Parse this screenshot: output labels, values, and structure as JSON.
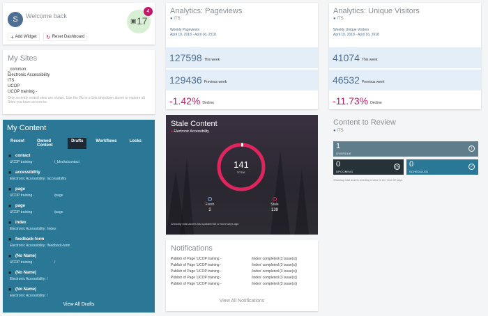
{
  "welcome": {
    "avatar_initial": "S",
    "text": "Welcome back",
    "notifications_count": "17",
    "notifications_badge": "4",
    "add_widget": "Add Widget",
    "reset_dashboard": "Reset Dashboard"
  },
  "my_sites": {
    "title": "My Sites",
    "sites": [
      "_common",
      "Electronic Accessibility",
      "ITS",
      "UCOP",
      "UCOP training -"
    ],
    "note": "Only recently visited sites are shown. Use the Go to a Site dropdown above to explore all Sites you have access to."
  },
  "my_content": {
    "title": "My Content",
    "tabs": [
      "Recent",
      "Owned Content",
      "Drafts",
      "Workflows",
      "Locks"
    ],
    "active_tab": "Drafts",
    "items": [
      {
        "name": "contact",
        "site": "UCOP training -",
        "path": "/_blocks/contact"
      },
      {
        "name": "accessibility",
        "site": "Electronic Accessibility: /accessibility",
        "path": ""
      },
      {
        "name": "page",
        "site": "UCOP training -",
        "path": "/page"
      },
      {
        "name": "page",
        "site": "UCOP training -",
        "path": "/page"
      },
      {
        "name": "index",
        "site": "Electronic Accessibility: /index",
        "path": ""
      },
      {
        "name": "feedback-form",
        "site": "Electronic Accessibility: /feedback-form",
        "path": ""
      },
      {
        "name": "(No Name)",
        "site": "UCOP training -",
        "path": "/"
      },
      {
        "name": "(No Name)",
        "site": "Electronic Accessibility: /",
        "path": ""
      },
      {
        "name": "(No Name)",
        "site": "Electronic Accessibility: /",
        "path": ""
      }
    ],
    "view_all": "View All Drafts"
  },
  "analytics_pageviews": {
    "title": "Analytics: Pageviews",
    "site": "ITS",
    "range_label": "Weekly Pageviews",
    "range": "April 10, 2018 - April 16, 2018",
    "this_week": "127598",
    "this_week_label": "This week",
    "previous_week": "129436",
    "previous_week_label": "Previous week",
    "change": "-1.42%",
    "change_label": "Decline"
  },
  "analytics_visitors": {
    "title": "Analytics: Unique Visitors",
    "site": "ITS",
    "range_label": "Weekly Unique Visitors",
    "range": "April 10, 2018 - April 16, 2018",
    "this_week": "41074",
    "this_week_label": "This week",
    "previous_week": "46532",
    "previous_week_label": "Previous week",
    "change": "-11.73%",
    "change_label": "Decline"
  },
  "stale_content": {
    "title": "Stale Content",
    "site": "Electronic Accessibility",
    "total": "141",
    "total_label": "TOTAL",
    "fresh_label": "Fresh",
    "fresh_value": "2",
    "stale_label": "Stale",
    "stale_value": "139",
    "footnote": "Showing total assets last updated 60 or more days ago",
    "fresh_fraction": 0.014,
    "colors": {
      "stale": "#e0245e",
      "fresh": "#ffffff",
      "fresh_dot": "#7fb2e5"
    }
  },
  "notifications": {
    "title": "Notifications",
    "rows": [
      {
        "a": "Publish of Page 'UCOP training -",
        "b": "/index' completed (3 issue(s))"
      },
      {
        "a": "Publish of Page 'UCOP training -",
        "b": "/index' completed (3 issue(s))"
      },
      {
        "a": "Publish of Page 'UCOP training -",
        "b": "/index' completed (3 issue(s))"
      },
      {
        "a": "Publish of Page 'UCOP training -",
        "b": "/index' completed (3 issue(s))"
      },
      {
        "a": "Publish of Page 'UCOP training -",
        "b": "/index' completed (3 issue(s))"
      }
    ],
    "view_all": "View All Notifications"
  },
  "content_review": {
    "title": "Content to Review",
    "site": "ITS",
    "overdue_value": "1",
    "overdue_label": "OVERDUE",
    "upcoming_value": "0",
    "upcoming_label": "UPCOMING",
    "scheduled_value": "0",
    "scheduled_label": "SCHEDULED",
    "footnote": "Showing total assets needing review in the next 90 days",
    "colors": {
      "overdue": "#607d8b",
      "upcoming": "#263238",
      "scheduled": "#2b7896"
    }
  },
  "icons": [
    "plus-icon",
    "reset-icon",
    "cube-icon",
    "globe-icon",
    "document-icon",
    "alert-icon",
    "clock-icon",
    "check-icon"
  ]
}
